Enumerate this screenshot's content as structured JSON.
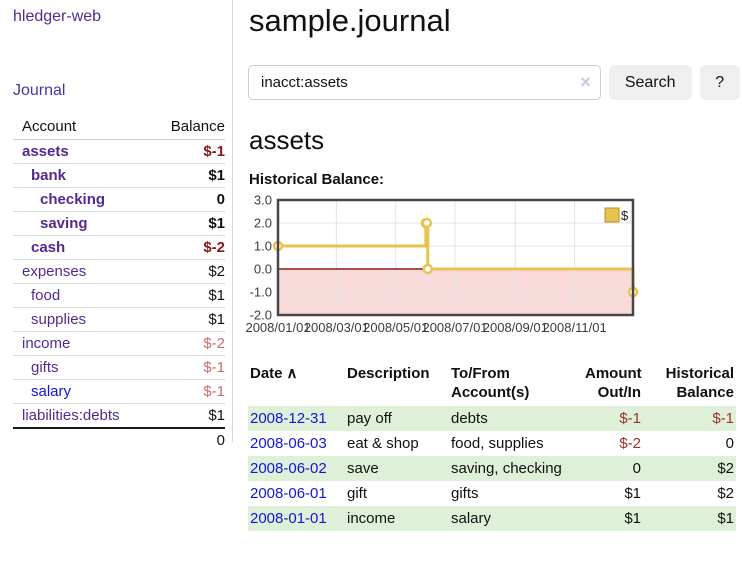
{
  "sidebar": {
    "app_title": "hledger-web",
    "journal_label": "Journal",
    "account_header": "Account",
    "balance_header": "Balance",
    "accounts": [
      {
        "name": "assets",
        "balance": "$-1"
      },
      {
        "name": "bank",
        "balance": "$1"
      },
      {
        "name": "checking",
        "balance": "0"
      },
      {
        "name": "saving",
        "balance": "$1"
      },
      {
        "name": "cash",
        "balance": "$-2"
      },
      {
        "name": "expenses",
        "balance": "$2"
      },
      {
        "name": "food",
        "balance": "$1"
      },
      {
        "name": "supplies",
        "balance": "$1"
      },
      {
        "name": "income",
        "balance": "$-2"
      },
      {
        "name": "gifts",
        "balance": "$-1"
      },
      {
        "name": "salary",
        "balance": "$-1"
      },
      {
        "name": "liabilities:debts",
        "balance": "$1"
      }
    ],
    "total": "0"
  },
  "header": {
    "title": "sample.journal"
  },
  "search": {
    "query": "inacct:assets",
    "clear_icon": "×",
    "search_label": "Search",
    "help_label": "?"
  },
  "account_page": {
    "title": "assets",
    "chart_label": "Historical Balance:"
  },
  "chart_data": {
    "type": "line",
    "style": "step-after",
    "title": "Historical Balance",
    "series": [
      {
        "name": "$",
        "x": [
          "2008-01-01",
          "2008-06-01",
          "2008-06-02",
          "2008-06-03",
          "2008-12-31"
        ],
        "y": [
          1,
          2,
          2,
          0,
          -1
        ]
      }
    ],
    "x_range": [
      "2008-01-01",
      "2008-12-31"
    ],
    "ylim": [
      -2,
      3
    ],
    "y_ticks": [
      {
        "value": 3,
        "label": "3.0"
      },
      {
        "value": 2,
        "label": "2.0"
      },
      {
        "value": 1,
        "label": "1.0"
      },
      {
        "value": 0,
        "label": "0.0"
      },
      {
        "value": -1,
        "label": "-1.0"
      },
      {
        "value": -2,
        "label": "-2.0"
      }
    ],
    "x_ticks": [
      {
        "date": "2008-01-01",
        "label": "2008/01/01"
      },
      {
        "date": "2008-03-01",
        "label": "2008/03/01"
      },
      {
        "date": "2008-05-01",
        "label": "2008/05/01"
      },
      {
        "date": "2008-07-01",
        "label": "2008/07/01"
      },
      {
        "date": "2008-09-01",
        "label": "2008/09/01"
      },
      {
        "date": "2008-11-01",
        "label": "2008/11/01"
      }
    ],
    "legend": {
      "label": "$",
      "position": "top-right"
    },
    "grid": true,
    "colors": {
      "line": "#E8C350",
      "marker_fill": "#ffffff",
      "legend_fill": "#E8C350",
      "legend_stroke": "#b3922e",
      "negative_fill": "#f9dada",
      "zero_line": "#8b1c1c",
      "grid_line": "#e4e4e4",
      "border": "#474747",
      "tick_text": "#3c3c3c"
    }
  },
  "register": {
    "headers": {
      "date": "Date",
      "description": "Description",
      "accounts": "To/From Account(s)",
      "amount": "Amount Out/In",
      "balance": "Historical Balance"
    },
    "sort_icon": "∧",
    "rows": [
      {
        "date": "2008-12-31",
        "description": "pay off",
        "accounts": "debts",
        "amount": "$-1",
        "balance": "$-1"
      },
      {
        "date": "2008-06-03",
        "description": "eat & shop",
        "accounts": "food, supplies",
        "amount": "$-2",
        "balance": "0"
      },
      {
        "date": "2008-06-02",
        "description": "save",
        "accounts": "saving, checking",
        "amount": "0",
        "balance": "$2"
      },
      {
        "date": "2008-06-01",
        "description": "gift",
        "accounts": "gifts",
        "amount": "$1",
        "balance": "$2"
      },
      {
        "date": "2008-01-01",
        "description": "income",
        "accounts": "salary",
        "amount": "$1",
        "balance": "$1"
      }
    ]
  }
}
